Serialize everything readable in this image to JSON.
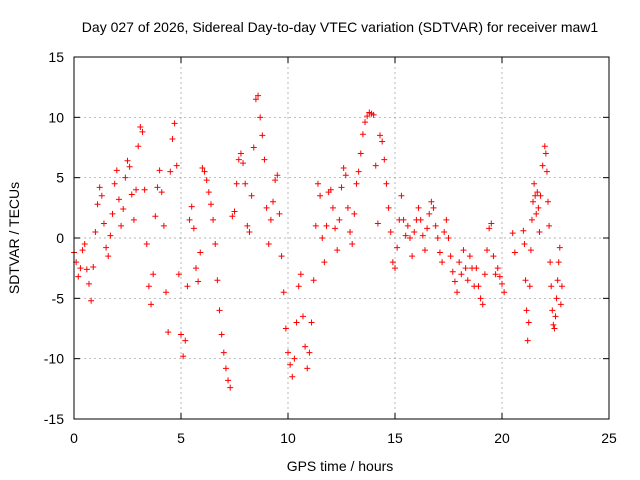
{
  "chart_data": {
    "type": "scatter",
    "title": "Day 027 of 2026, Sidereal Day-to-day VTEC variation (SDTVAR) for receiver maw1",
    "xlabel": "GPS time / hours",
    "ylabel": "SDTVAR / TECUs",
    "xlim": [
      0,
      25
    ],
    "ylim": [
      -15,
      15
    ],
    "xticks": [
      0,
      5,
      10,
      15,
      20,
      25
    ],
    "yticks": [
      -15,
      -10,
      -5,
      0,
      5,
      10,
      15
    ],
    "xtick_labels": [
      "0",
      "5",
      "10",
      "15",
      "20",
      "25"
    ],
    "ytick_labels": [
      "-15",
      "-10",
      "-5",
      "0",
      "5",
      "10",
      "15"
    ],
    "grid": true,
    "marker": "+",
    "color": "#ff0000",
    "series": [
      {
        "name": "SDTVAR",
        "points": [
          [
            0.0,
            -1.2
          ],
          [
            0.1,
            -2.0
          ],
          [
            0.2,
            -3.2
          ],
          [
            0.3,
            -2.5
          ],
          [
            0.4,
            -1.0
          ],
          [
            0.5,
            -0.5
          ],
          [
            0.6,
            -2.6
          ],
          [
            0.7,
            -3.8
          ],
          [
            0.8,
            -5.2
          ],
          [
            0.9,
            -2.4
          ],
          [
            1.0,
            0.5
          ],
          [
            1.1,
            2.8
          ],
          [
            1.2,
            4.2
          ],
          [
            1.3,
            3.5
          ],
          [
            1.4,
            1.2
          ],
          [
            1.5,
            -0.8
          ],
          [
            1.6,
            -1.5
          ],
          [
            1.7,
            0.2
          ],
          [
            1.8,
            2.0
          ],
          [
            1.9,
            4.5
          ],
          [
            2.0,
            5.6
          ],
          [
            2.1,
            3.2
          ],
          [
            2.2,
            1.0
          ],
          [
            2.3,
            2.4
          ],
          [
            2.4,
            5.0
          ],
          [
            2.5,
            6.4
          ],
          [
            2.6,
            5.9
          ],
          [
            2.7,
            3.6
          ],
          [
            2.8,
            1.5
          ],
          [
            2.9,
            4.0
          ],
          [
            3.0,
            7.6
          ],
          [
            3.1,
            9.2
          ],
          [
            3.2,
            8.8
          ],
          [
            3.3,
            4.0
          ],
          [
            3.4,
            -0.5
          ],
          [
            3.5,
            -4.0
          ],
          [
            3.6,
            -5.5
          ],
          [
            3.7,
            -3.0
          ],
          [
            3.8,
            1.8
          ],
          [
            3.9,
            4.2
          ],
          [
            4.0,
            5.6
          ],
          [
            4.1,
            3.8
          ],
          [
            4.2,
            1.0
          ],
          [
            4.3,
            -4.5
          ],
          [
            4.4,
            -7.8
          ],
          [
            4.5,
            5.5
          ],
          [
            4.6,
            8.2
          ],
          [
            4.7,
            9.5
          ],
          [
            4.8,
            6.0
          ],
          [
            4.9,
            -3.0
          ],
          [
            5.0,
            -8.0
          ],
          [
            5.1,
            -9.8
          ],
          [
            5.2,
            -8.5
          ],
          [
            5.3,
            -4.0
          ],
          [
            5.4,
            1.5
          ],
          [
            5.5,
            2.6
          ],
          [
            5.6,
            0.8
          ],
          [
            5.7,
            -2.5
          ],
          [
            5.8,
            -3.6
          ],
          [
            5.9,
            -1.2
          ],
          [
            6.0,
            5.8
          ],
          [
            6.1,
            5.5
          ],
          [
            6.2,
            4.8
          ],
          [
            6.3,
            3.8
          ],
          [
            6.4,
            2.8
          ],
          [
            6.5,
            1.5
          ],
          [
            6.6,
            -0.5
          ],
          [
            6.7,
            -3.5
          ],
          [
            6.8,
            -6.0
          ],
          [
            6.9,
            -8.0
          ],
          [
            7.0,
            -9.5
          ],
          [
            7.1,
            -10.8
          ],
          [
            7.2,
            -11.8
          ],
          [
            7.3,
            -12.4
          ],
          [
            7.4,
            1.8
          ],
          [
            7.5,
            2.2
          ],
          [
            7.6,
            4.5
          ],
          [
            7.7,
            6.5
          ],
          [
            7.8,
            7.0
          ],
          [
            7.9,
            6.2
          ],
          [
            8.0,
            4.5
          ],
          [
            8.1,
            1.0
          ],
          [
            8.2,
            0.5
          ],
          [
            8.3,
            3.5
          ],
          [
            8.4,
            7.5
          ],
          [
            8.5,
            11.5
          ],
          [
            8.6,
            11.8
          ],
          [
            8.7,
            10.0
          ],
          [
            8.8,
            8.5
          ],
          [
            8.9,
            6.5
          ],
          [
            9.0,
            2.5
          ],
          [
            9.1,
            -0.5
          ],
          [
            9.2,
            1.5
          ],
          [
            9.3,
            3.0
          ],
          [
            9.4,
            4.8
          ],
          [
            9.5,
            5.2
          ],
          [
            9.6,
            2.0
          ],
          [
            9.7,
            -1.5
          ],
          [
            9.8,
            -4.5
          ],
          [
            9.9,
            -7.5
          ],
          [
            10.0,
            -9.5
          ],
          [
            10.1,
            -10.5
          ],
          [
            10.2,
            -11.5
          ],
          [
            10.3,
            -10.0
          ],
          [
            10.4,
            -7.0
          ],
          [
            10.5,
            -4.0
          ],
          [
            10.6,
            -3.0
          ],
          [
            10.7,
            -6.5
          ],
          [
            10.8,
            -9.0
          ],
          [
            10.9,
            -10.8
          ],
          [
            11.0,
            -9.5
          ],
          [
            11.1,
            -7.0
          ],
          [
            11.2,
            -3.5
          ],
          [
            11.3,
            1.0
          ],
          [
            11.4,
            4.5
          ],
          [
            11.5,
            3.5
          ],
          [
            11.6,
            0.0
          ],
          [
            11.7,
            -2.0
          ],
          [
            11.8,
            1.0
          ],
          [
            11.9,
            3.8
          ],
          [
            12.0,
            4.0
          ],
          [
            12.1,
            2.5
          ],
          [
            12.2,
            0.8
          ],
          [
            12.3,
            -1.0
          ],
          [
            12.4,
            1.5
          ],
          [
            12.5,
            4.2
          ],
          [
            12.6,
            5.8
          ],
          [
            12.7,
            5.2
          ],
          [
            12.8,
            2.5
          ],
          [
            12.9,
            0.5
          ],
          [
            13.0,
            -0.5
          ],
          [
            13.1,
            2.0
          ],
          [
            13.2,
            4.5
          ],
          [
            13.3,
            5.5
          ],
          [
            13.4,
            7.0
          ],
          [
            13.5,
            8.6
          ],
          [
            13.6,
            9.6
          ],
          [
            13.7,
            10.1
          ],
          [
            13.8,
            10.4
          ],
          [
            13.9,
            10.3
          ],
          [
            14.0,
            10.2
          ],
          [
            14.1,
            6.0
          ],
          [
            14.2,
            1.2
          ],
          [
            14.3,
            8.5
          ],
          [
            14.4,
            8.0
          ],
          [
            14.5,
            6.5
          ],
          [
            14.6,
            4.5
          ],
          [
            14.7,
            2.5
          ],
          [
            14.8,
            0.5
          ],
          [
            14.9,
            -2.0
          ],
          [
            15.0,
            -2.5
          ],
          [
            15.1,
            -0.8
          ],
          [
            15.2,
            1.5
          ],
          [
            15.3,
            3.5
          ],
          [
            15.4,
            1.5
          ],
          [
            15.5,
            0.2
          ],
          [
            15.6,
            1.0
          ],
          [
            15.7,
            0.0
          ],
          [
            15.8,
            -1.5
          ],
          [
            15.9,
            0.5
          ],
          [
            16.0,
            1.5
          ],
          [
            16.1,
            2.5
          ],
          [
            16.2,
            1.5
          ],
          [
            16.3,
            0.2
          ],
          [
            16.4,
            -1.0
          ],
          [
            16.5,
            0.8
          ],
          [
            16.6,
            2.0
          ],
          [
            16.7,
            3.0
          ],
          [
            16.8,
            2.5
          ],
          [
            16.9,
            1.0
          ],
          [
            17.0,
            0.0
          ],
          [
            17.1,
            -1.2
          ],
          [
            17.2,
            -2.0
          ],
          [
            17.3,
            0.5
          ],
          [
            17.4,
            1.5
          ],
          [
            17.5,
            0.0
          ],
          [
            17.6,
            -1.5
          ],
          [
            17.7,
            -2.8
          ],
          [
            17.8,
            -3.6
          ],
          [
            17.9,
            -4.5
          ],
          [
            18.0,
            -2.0
          ],
          [
            18.1,
            -3.0
          ],
          [
            18.2,
            -1.0
          ],
          [
            18.3,
            -2.5
          ],
          [
            18.4,
            -3.5
          ],
          [
            18.5,
            -1.5
          ],
          [
            18.6,
            -2.5
          ],
          [
            18.7,
            -4.0
          ],
          [
            18.8,
            -2.5
          ],
          [
            18.9,
            -4.0
          ],
          [
            19.0,
            -5.0
          ],
          [
            19.1,
            -5.5
          ],
          [
            19.2,
            -3.0
          ],
          [
            19.3,
            -1.0
          ],
          [
            19.4,
            0.8
          ],
          [
            19.5,
            1.2
          ],
          [
            19.6,
            -1.5
          ],
          [
            19.7,
            -3.0
          ],
          [
            19.8,
            -2.5
          ],
          [
            19.9,
            -3.2
          ],
          [
            20.0,
            -3.8
          ],
          [
            20.1,
            -4.5
          ],
          [
            20.5,
            0.4
          ],
          [
            20.6,
            -1.2
          ],
          [
            21.0,
            0.6
          ],
          [
            21.05,
            -0.5
          ],
          [
            21.1,
            -3.5
          ],
          [
            21.15,
            -6.0
          ],
          [
            21.2,
            -8.5
          ],
          [
            21.25,
            -7.0
          ],
          [
            21.3,
            -4.0
          ],
          [
            21.35,
            -1.0
          ],
          [
            21.4,
            1.5
          ],
          [
            21.45,
            3.0
          ],
          [
            21.5,
            4.5
          ],
          [
            21.55,
            3.5
          ],
          [
            21.6,
            2.0
          ],
          [
            21.65,
            3.8
          ],
          [
            21.7,
            2.5
          ],
          [
            21.75,
            0.5
          ],
          [
            21.8,
            3.5
          ],
          [
            21.9,
            6.0
          ],
          [
            22.0,
            7.6
          ],
          [
            22.05,
            7.0
          ],
          [
            22.1,
            5.5
          ],
          [
            22.15,
            3.0
          ],
          [
            22.2,
            1.0
          ],
          [
            22.25,
            -2.0
          ],
          [
            22.3,
            -4.0
          ],
          [
            22.35,
            -6.0
          ],
          [
            22.4,
            -7.2
          ],
          [
            22.45,
            -7.5
          ],
          [
            22.5,
            -6.5
          ],
          [
            22.55,
            -5.0
          ],
          [
            22.6,
            -3.5
          ],
          [
            22.65,
            -2.0
          ],
          [
            22.7,
            -0.8
          ],
          [
            22.75,
            -5.5
          ],
          [
            22.8,
            -4.0
          ]
        ]
      }
    ]
  }
}
